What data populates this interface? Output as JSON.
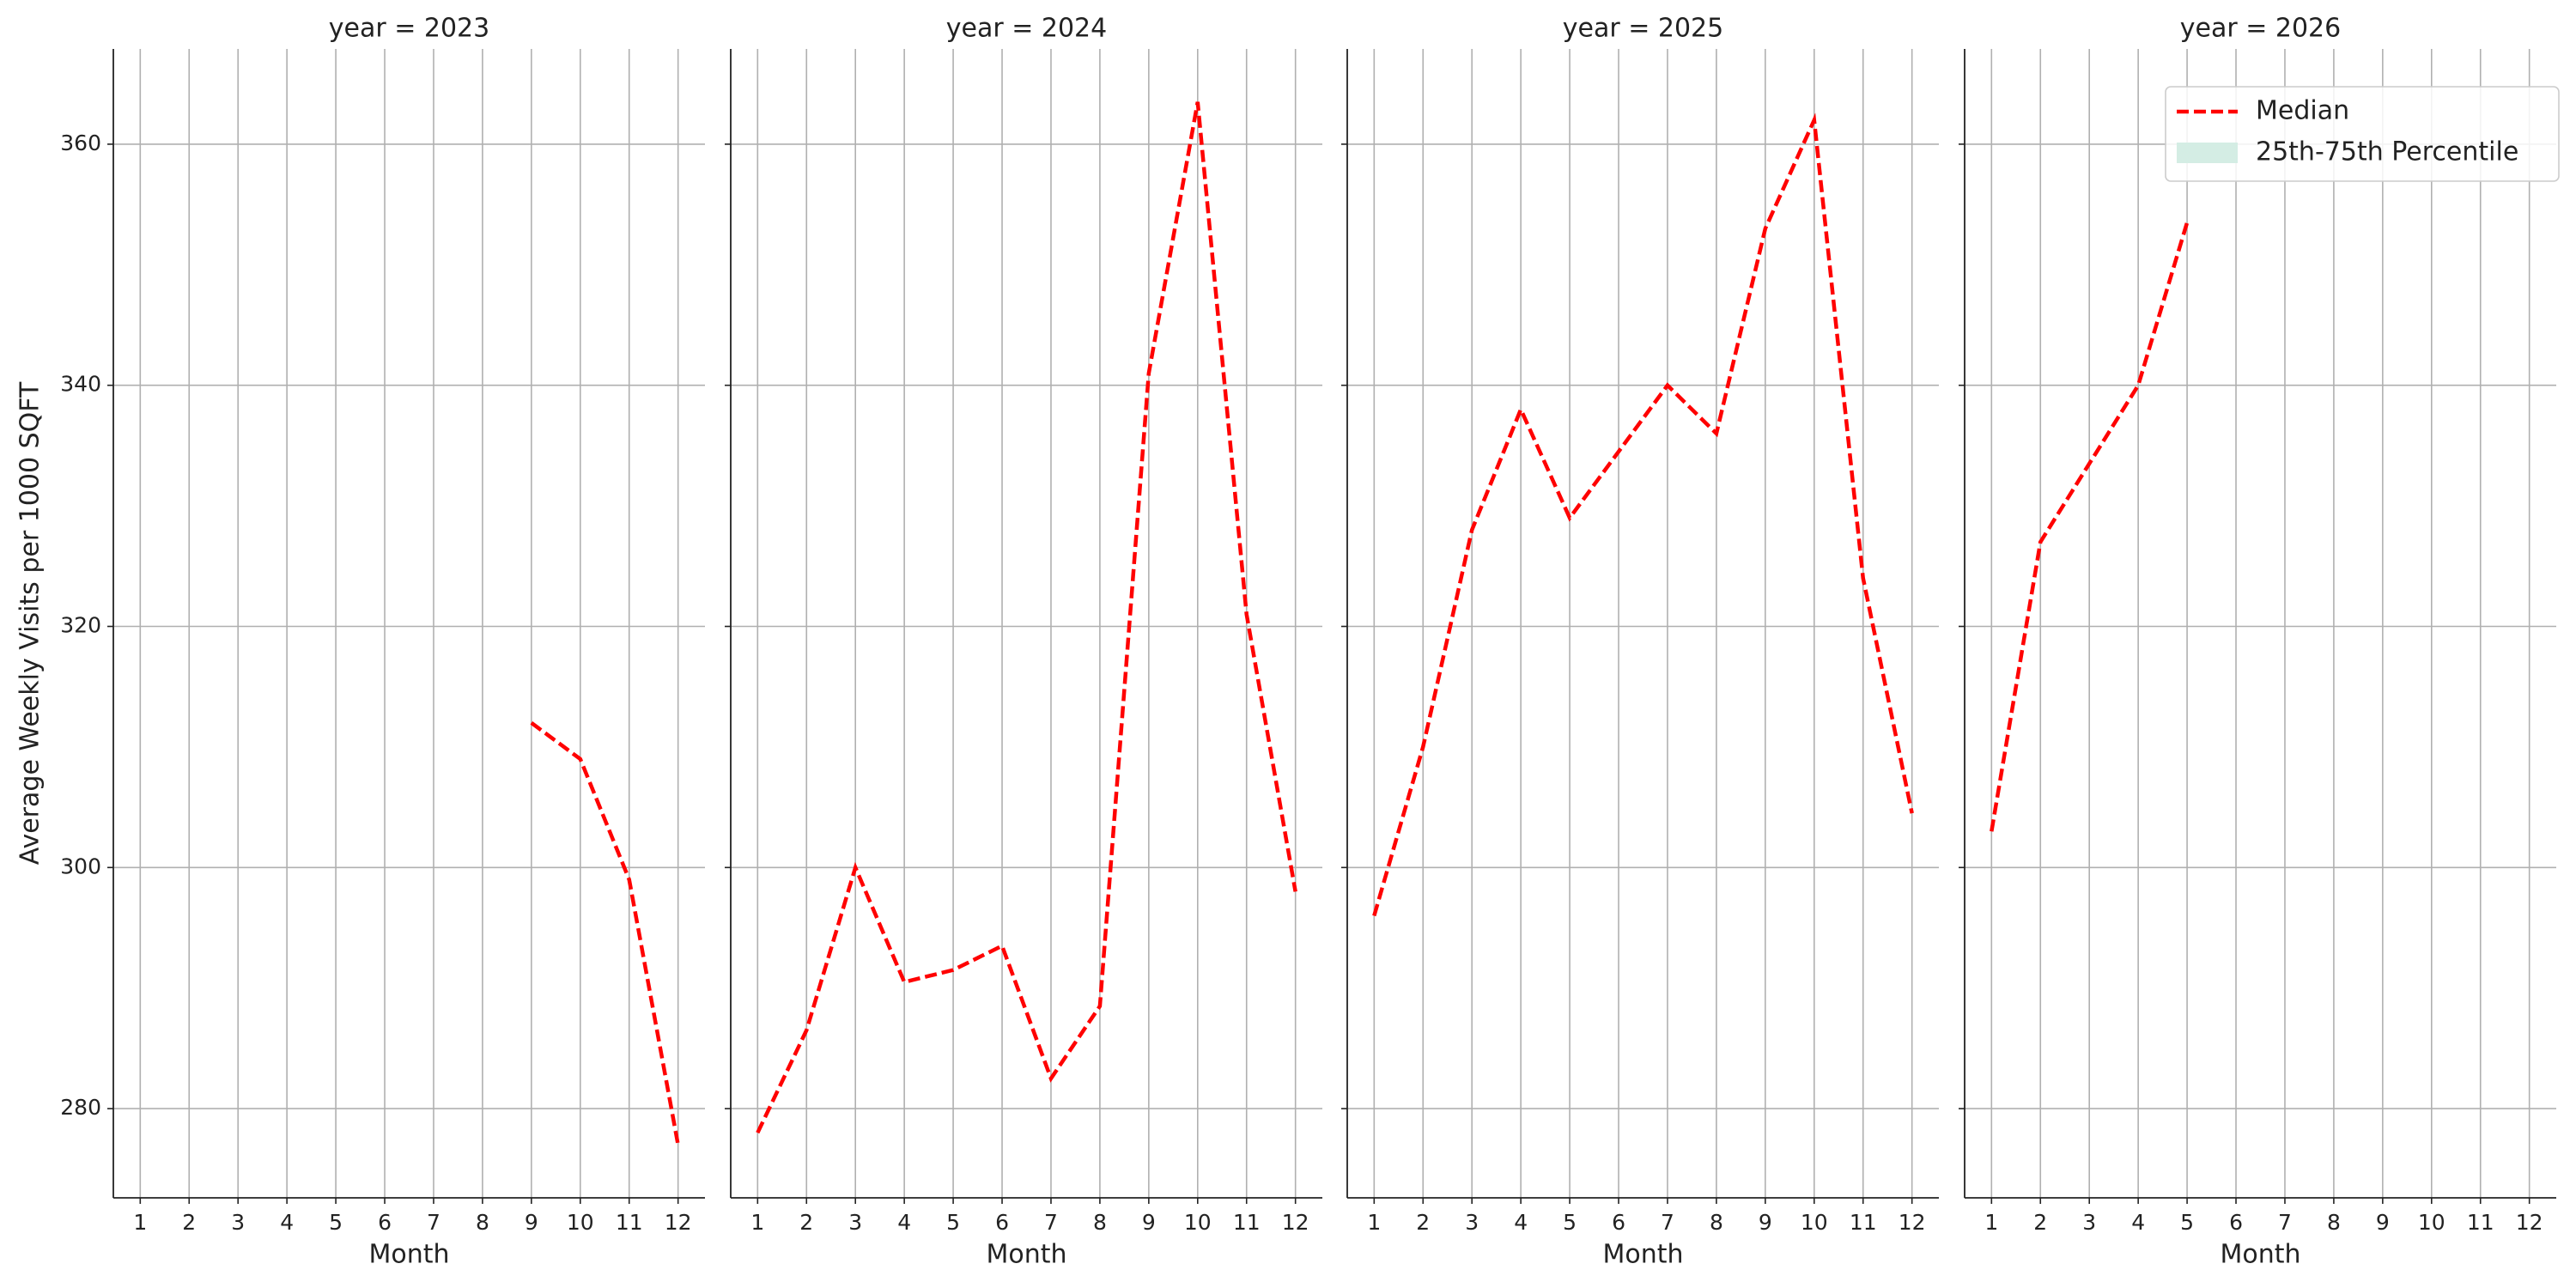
{
  "chart_data": [
    {
      "type": "line",
      "title": "year = 2023",
      "x_label": "Month",
      "y_label": "Average Weekly Visits per 1000 SQFT",
      "x": [
        1,
        2,
        3,
        4,
        5,
        6,
        7,
        8,
        9,
        10,
        11,
        12
      ],
      "xlim": [
        0.45,
        12.55
      ],
      "xticks": [
        1,
        2,
        3,
        4,
        5,
        6,
        7,
        8,
        9,
        10,
        11,
        12
      ],
      "ylim": [
        272.6,
        367.9
      ],
      "yticks": [
        280,
        300,
        320,
        340,
        360
      ],
      "grid": true,
      "series": [
        {
          "name": "Median",
          "color": "#ff0000",
          "values": [
            null,
            null,
            null,
            null,
            null,
            null,
            null,
            null,
            312,
            309,
            299,
            277
          ]
        }
      ]
    },
    {
      "type": "line",
      "title": "year = 2024",
      "x_label": "Month",
      "x": [
        1,
        2,
        3,
        4,
        5,
        6,
        7,
        8,
        9,
        10,
        11,
        12
      ],
      "xlim": [
        0.45,
        12.55
      ],
      "xticks": [
        1,
        2,
        3,
        4,
        5,
        6,
        7,
        8,
        9,
        10,
        11,
        12
      ],
      "ylim": [
        272.6,
        367.9
      ],
      "yticks": [
        280,
        300,
        320,
        340,
        360
      ],
      "grid": true,
      "series": [
        {
          "name": "Median",
          "color": "#ff0000",
          "values": [
            278,
            286.5,
            300,
            290.5,
            291.5,
            293.5,
            282.5,
            288.5,
            341,
            363.5,
            321,
            298
          ]
        }
      ]
    },
    {
      "type": "line",
      "title": "year = 2025",
      "x_label": "Month",
      "x": [
        1,
        2,
        3,
        4,
        5,
        6,
        7,
        8,
        9,
        10,
        11,
        12
      ],
      "xlim": [
        0.45,
        12.55
      ],
      "xticks": [
        1,
        2,
        3,
        4,
        5,
        6,
        7,
        8,
        9,
        10,
        11,
        12
      ],
      "ylim": [
        272.6,
        367.9
      ],
      "yticks": [
        280,
        300,
        320,
        340,
        360
      ],
      "grid": true,
      "series": [
        {
          "name": "Median",
          "color": "#ff0000",
          "values": [
            296,
            310,
            328,
            338,
            329,
            334.5,
            340,
            336,
            353,
            362,
            324,
            304.5
          ]
        }
      ]
    },
    {
      "type": "line",
      "title": "year = 2026",
      "x_label": "Month",
      "x": [
        1,
        2,
        3,
        4,
        5,
        6,
        7,
        8,
        9,
        10,
        11,
        12
      ],
      "xlim": [
        0.45,
        12.55
      ],
      "xticks": [
        1,
        2,
        3,
        4,
        5,
        6,
        7,
        8,
        9,
        10,
        11,
        12
      ],
      "ylim": [
        272.6,
        367.9
      ],
      "yticks": [
        280,
        300,
        320,
        340,
        360
      ],
      "grid": true,
      "series": [
        {
          "name": "Median",
          "color": "#ff0000",
          "values": [
            303,
            327,
            333.5,
            340,
            353.5,
            null,
            null,
            null,
            null,
            null,
            null,
            null
          ]
        }
      ],
      "legend": {
        "position": "upper right",
        "entries": [
          {
            "name": "Median",
            "color": "#ff0000"
          },
          {
            "name": "25th-75th Percentile",
            "color": "#d4ede4"
          }
        ]
      }
    }
  ]
}
